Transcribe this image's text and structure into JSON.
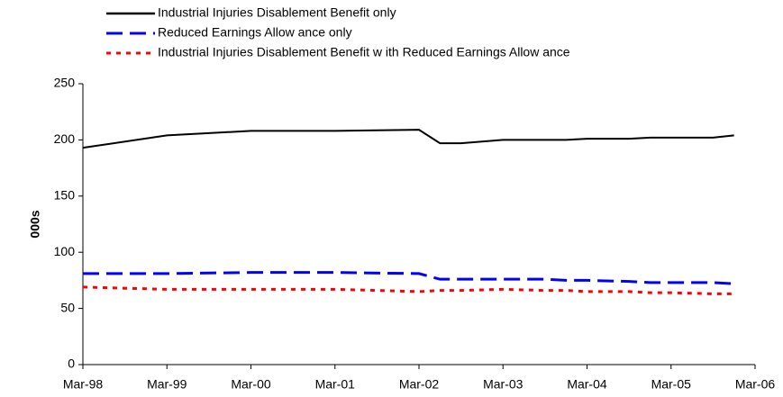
{
  "chart_data": {
    "type": "line",
    "y_label": "000s",
    "x": [
      1998,
      1999,
      2000,
      2001,
      2002,
      2002.25,
      2002.5,
      2003,
      2003.5,
      2003.75,
      2004,
      2004.5,
      2004.75,
      2005,
      2005.5,
      2005.75
    ],
    "series": [
      {
        "name": "Industrial Injuries Disablement Benefit only",
        "color": "#000000",
        "style": "solid",
        "values": [
          193,
          204,
          208,
          208,
          209,
          197,
          197,
          200,
          200,
          200,
          201,
          201,
          202,
          202,
          202,
          204
        ]
      },
      {
        "name": "Reduced Earnings Allow ance only",
        "color": "#0000ff",
        "style": "dashed",
        "values": [
          81,
          81,
          82,
          82,
          81,
          76,
          76,
          76,
          76,
          75,
          75,
          74,
          73,
          73,
          73,
          72
        ]
      },
      {
        "name": "Industrial Injuries Disablement Benefit w ith Reduced Earnings Allow ance",
        "color": "#ff0000",
        "style": "dotted",
        "values": [
          69,
          67,
          67,
          67,
          65,
          66,
          66,
          67,
          66,
          66,
          65,
          65,
          64,
          64,
          63,
          63
        ]
      }
    ],
    "xlim": [
      1998,
      2006
    ],
    "xticks": [
      {
        "value": 1998,
        "label": "Mar-98"
      },
      {
        "value": 1999,
        "label": "Mar-99"
      },
      {
        "value": 2000,
        "label": "Mar-00"
      },
      {
        "value": 2001,
        "label": "Mar-01"
      },
      {
        "value": 2002,
        "label": "Mar-02"
      },
      {
        "value": 2003,
        "label": "Mar-03"
      },
      {
        "value": 2004,
        "label": "Mar-04"
      },
      {
        "value": 2005,
        "label": "Mar-05"
      },
      {
        "value": 2006,
        "label": "Mar-06"
      }
    ],
    "ylim": [
      0,
      250
    ],
    "yticks": [
      0,
      50,
      100,
      150,
      200,
      250
    ],
    "grid": false
  }
}
